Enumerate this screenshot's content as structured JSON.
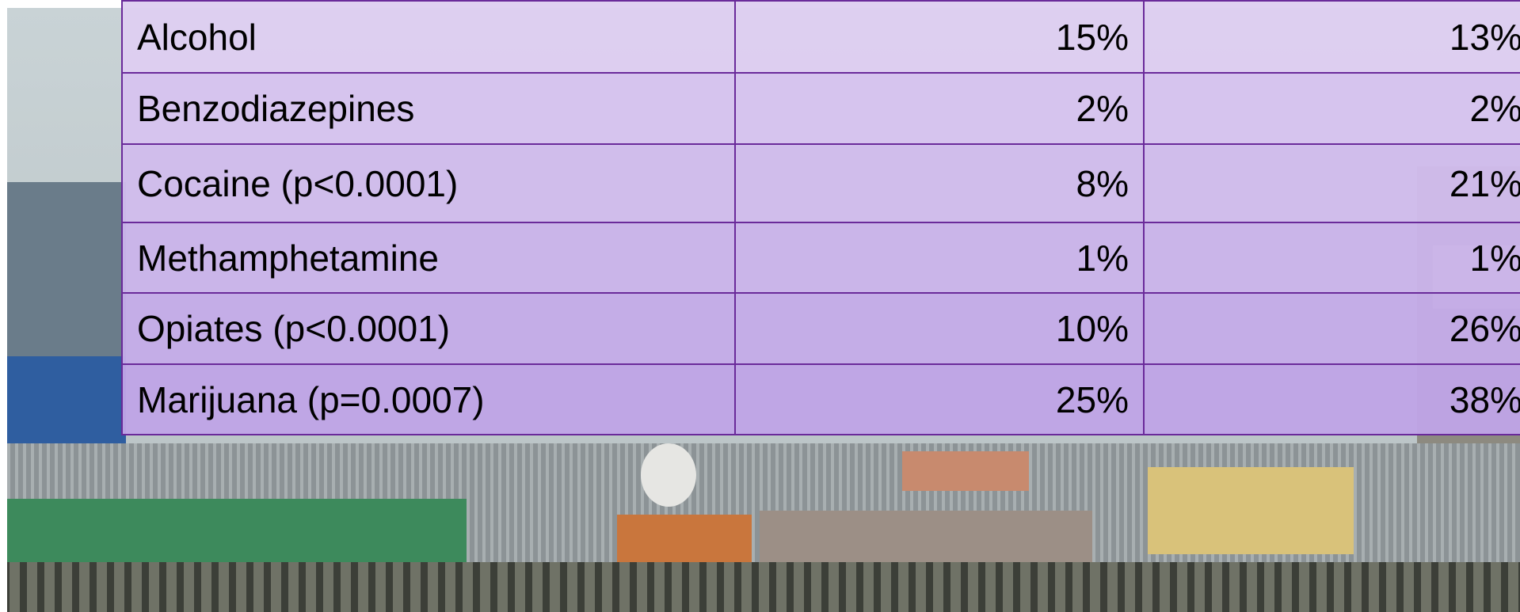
{
  "table": {
    "rows": [
      [
        "Alcohol",
        "15%",
        "13%"
      ],
      [
        "Benzodiazepines",
        "2%",
        "2%"
      ],
      [
        "Cocaine (p<0.0001)",
        "8%",
        "21%"
      ],
      [
        "Methamphetamine",
        "1%",
        "1%"
      ],
      [
        "Opiates (p<0.0001)",
        "10%",
        "26%"
      ],
      [
        "Marijuana (p=0.0007)",
        "25%",
        "38%"
      ]
    ]
  }
}
